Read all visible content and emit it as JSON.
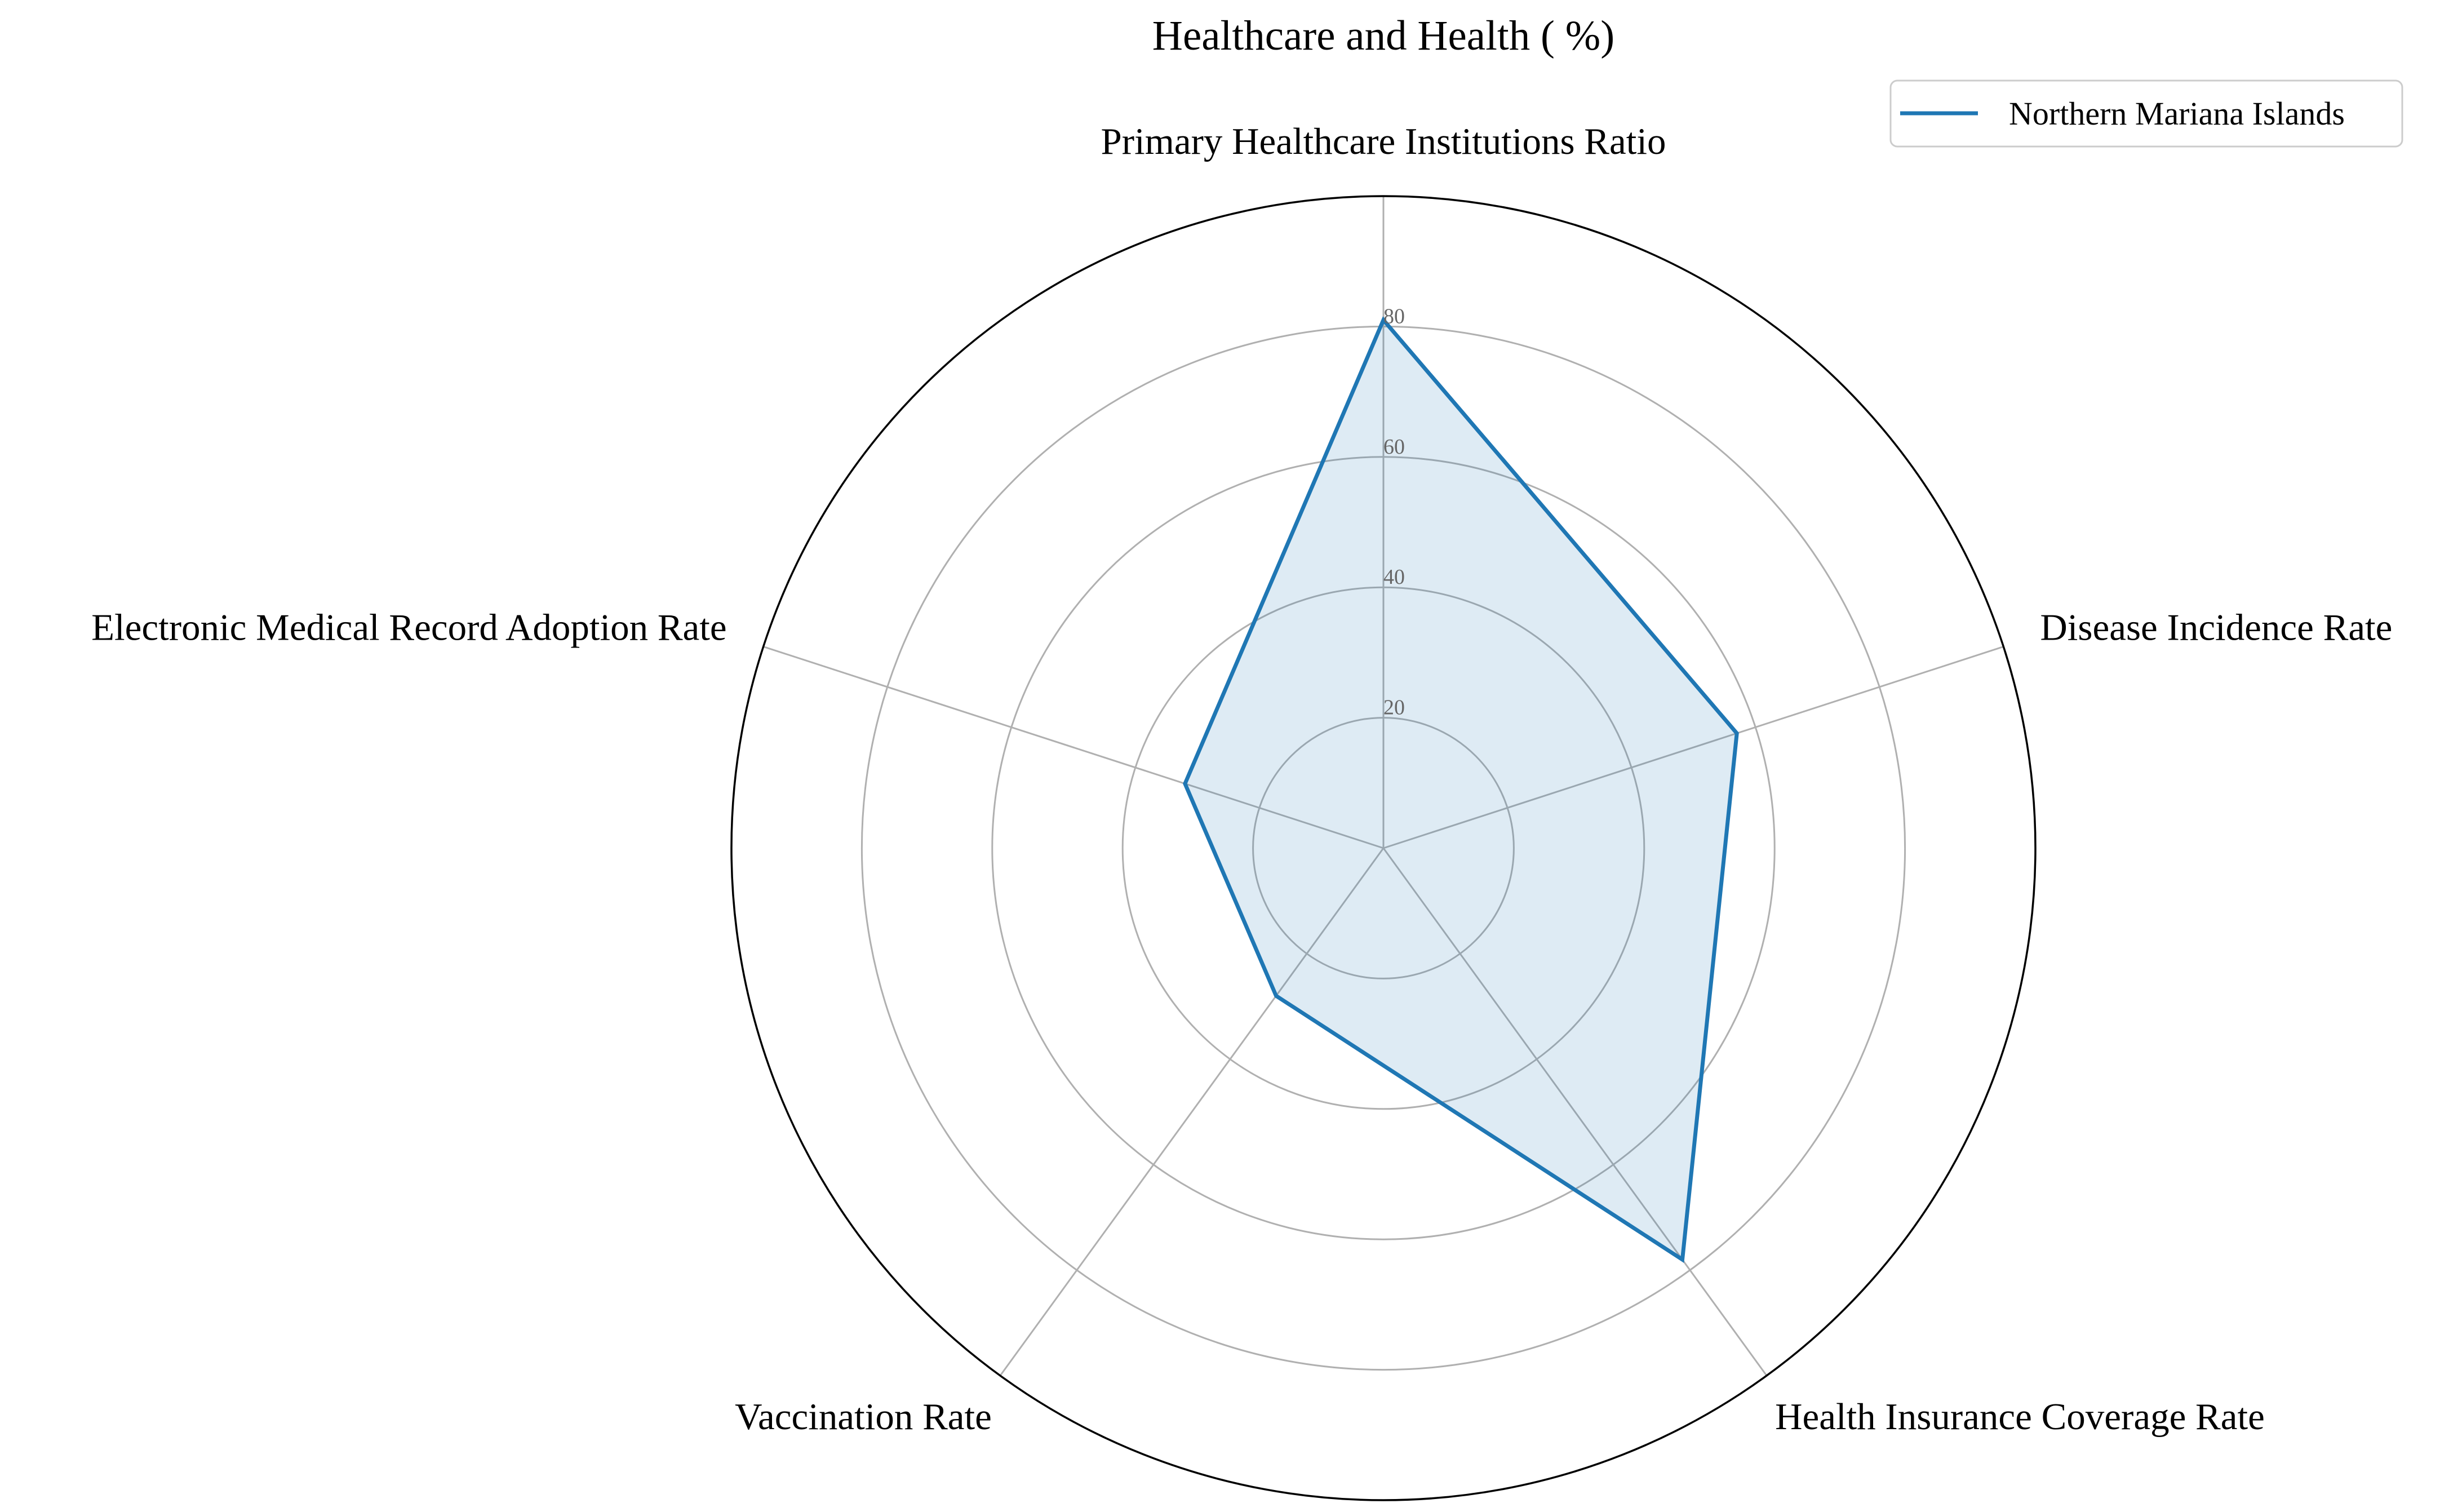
{
  "chart_data": {
    "type": "radar",
    "title": "Healthcare and Health ( %)",
    "categories": [
      "Primary Healthcare Institutions Ratio",
      "Disease Incidence Rate",
      "Health Insurance Coverage Rate",
      "Vaccination Rate",
      "Electronic Medical Record Adoption Rate"
    ],
    "series": [
      {
        "name": "Northern Mariana Islands",
        "values": [
          81,
          57,
          78,
          28,
          32
        ],
        "color": "#1f77b4"
      }
    ],
    "rlim": [
      0,
      100
    ],
    "radial_ticks": [
      20,
      40,
      60,
      80
    ],
    "radial_tick_labels": [
      "20",
      "40",
      "60",
      "80"
    ],
    "grid": true,
    "legend_position": "top-right"
  }
}
